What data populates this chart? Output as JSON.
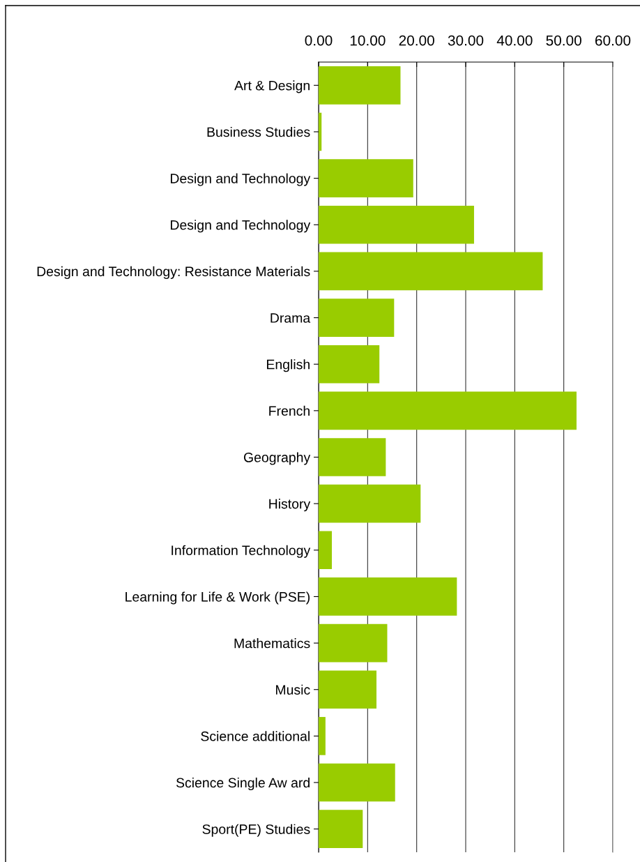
{
  "chart_data": {
    "type": "bar",
    "orientation": "horizontal",
    "categories": [
      "Art & Design",
      "Business Studies",
      "Design and Technology",
      "Design and Technology",
      "Design and Technology: Resistance Materials",
      "Drama",
      "English",
      "French",
      "Geography",
      "History",
      "Information Technology",
      "Learning for Life & Work (PSE)",
      "Mathematics",
      "Music",
      "Science additional",
      "Science Single Aw ard",
      "Sport(PE) Studies"
    ],
    "values": [
      16.7,
      0.6,
      19.3,
      31.7,
      45.7,
      15.4,
      12.4,
      52.6,
      13.7,
      20.8,
      2.7,
      28.2,
      14.0,
      11.8,
      1.4,
      15.6,
      9.0
    ],
    "color": "#99cc00",
    "xlim": [
      0,
      60
    ],
    "xticks": [
      {
        "value": 0,
        "label": "0.00"
      },
      {
        "value": 10,
        "label": "10.00"
      },
      {
        "value": 20,
        "label": "20.00"
      },
      {
        "value": 30,
        "label": "30.00"
      },
      {
        "value": 40,
        "label": "40.00"
      },
      {
        "value": 50,
        "label": "50.00"
      },
      {
        "value": 60,
        "label": "60.00"
      }
    ],
    "grid": "x"
  }
}
